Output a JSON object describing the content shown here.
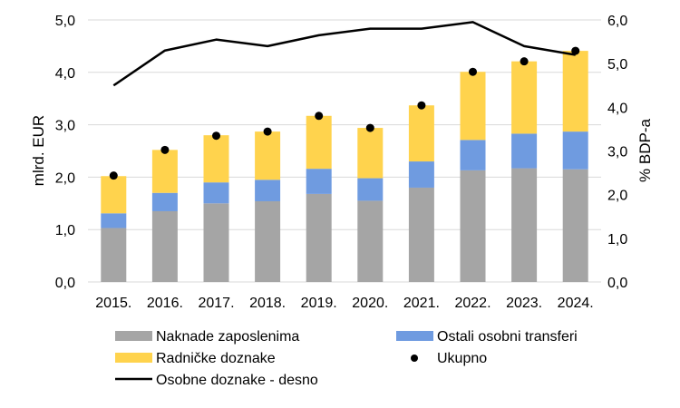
{
  "chart_data": {
    "type": "bar",
    "stacked": true,
    "categories": [
      "2015.",
      "2016.",
      "2017.",
      "2018.",
      "2019.",
      "2020.",
      "2021.",
      "2022.",
      "2023.",
      "2024."
    ],
    "series": [
      {
        "name": "Naknade zaposlenima",
        "kind": "bar",
        "axis": "left",
        "color": "#A5A5A5",
        "values": [
          1.03,
          1.35,
          1.5,
          1.54,
          1.68,
          1.55,
          1.8,
          2.13,
          2.17,
          2.15
        ]
      },
      {
        "name": "Ostali osobni transferi",
        "kind": "bar",
        "axis": "left",
        "color": "#6F9BE0",
        "values": [
          0.28,
          0.35,
          0.4,
          0.41,
          0.48,
          0.43,
          0.5,
          0.58,
          0.66,
          0.72
        ]
      },
      {
        "name": "Radničke doznake",
        "kind": "bar",
        "axis": "left",
        "color": "#FFD34D",
        "values": [
          0.71,
          0.82,
          0.9,
          0.92,
          1.01,
          0.96,
          1.07,
          1.3,
          1.38,
          1.54
        ]
      },
      {
        "name": "Ukupno",
        "kind": "point",
        "axis": "left",
        "color": "#000000",
        "values": [
          2.03,
          2.52,
          2.79,
          2.87,
          3.17,
          2.94,
          3.37,
          4.01,
          4.21,
          4.41
        ]
      },
      {
        "name": "Osobne doznake - desno",
        "kind": "line",
        "axis": "right",
        "color": "#000000",
        "values": [
          4.5,
          5.3,
          5.55,
          5.4,
          5.65,
          5.8,
          5.8,
          5.95,
          5.4,
          5.2
        ]
      }
    ],
    "y_left": {
      "label": "mlrd. EUR",
      "range": [
        0,
        5
      ],
      "ticks": [
        "0,0",
        "1,0",
        "2,0",
        "3,0",
        "4,0",
        "5,0"
      ]
    },
    "y_right": {
      "label": "% BDP-a",
      "range": [
        0,
        6
      ],
      "ticks": [
        "0,0",
        "1,0",
        "2,0",
        "3,0",
        "4,0",
        "5,0",
        "6,0"
      ]
    },
    "grid": true,
    "legend": {
      "placement": "bottom",
      "items": [
        "Naknade zaposlenima",
        "Ostali osobni transferi",
        "Radničke doznake",
        "Ukupno",
        "Osobne doznake - desno"
      ]
    }
  }
}
